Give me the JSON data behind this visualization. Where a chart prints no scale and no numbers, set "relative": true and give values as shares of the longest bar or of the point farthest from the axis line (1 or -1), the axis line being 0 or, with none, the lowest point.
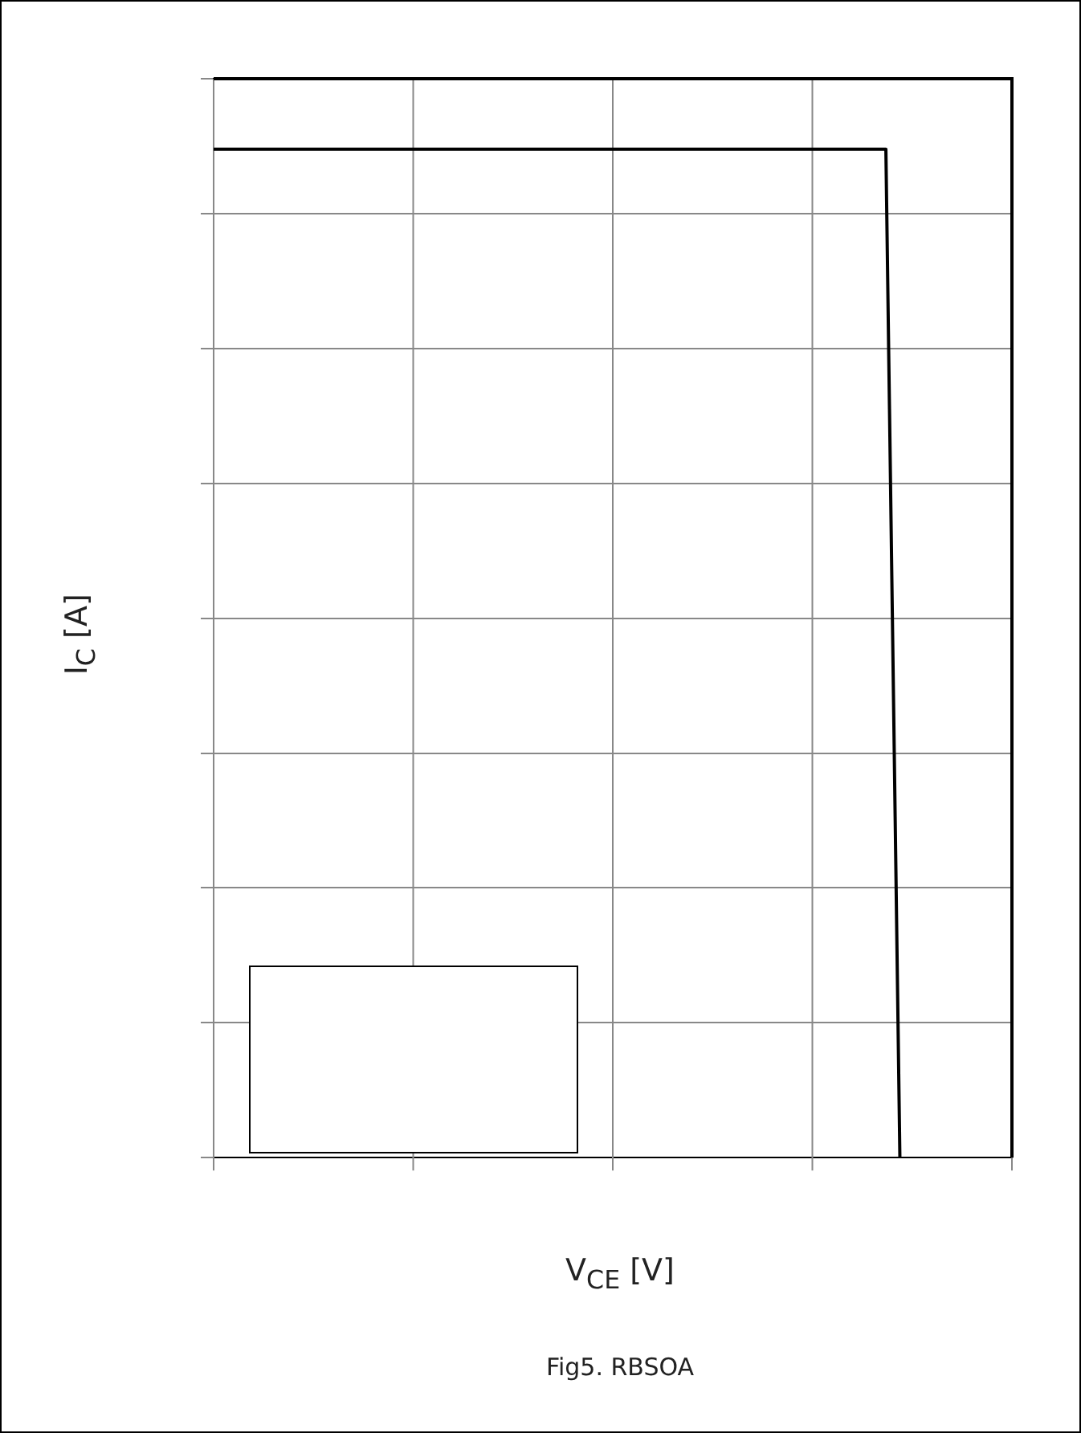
{
  "chart_data": {
    "type": "line",
    "relative": true,
    "xlabel": "V$_{CE}$  [V]",
    "ylabel": "I$_{C}$  [A]",
    "annotations": [
      "Fig5. RBSOA"
    ],
    "categories": [
      null,
      null,
      null,
      null,
      null,
      null,
      null,
      null,
      null,
      null,
      null,
      null,
      null,
      null,
      null,
      null,
      null,
      null,
      null,
      null,
      null,
      null,
      null,
      null,
      null,
      null,
      null,
      null,
      null,
      null,
      null,
      null,
      null,
      null,
      null,
      null,
      null,
      null,
      null,
      null,
      null,
      null,
      null,
      null,
      null,
      null,
      null,
      null,
      null,
      null,
      null,
      null,
      null,
      null,
      null,
      null,
      null,
      null
    ],
    "grid": true,
    "legend": false,
    "marker": "none",
    "line_style": "solid",
    "series": [
      {
        "color": "#000000",
        "values": [
          1,
          1,
          1,
          1,
          1,
          1,
          1,
          1,
          1,
          1,
          1,
          1,
          1,
          1,
          1,
          1,
          1,
          1,
          1,
          1,
          1,
          1,
          1,
          1,
          1,
          1,
          1,
          1,
          1,
          1,
          1,
          1,
          1,
          1,
          1,
          1,
          1,
          1,
          1,
          1,
          1,
          1,
          1,
          1,
          1,
          1,
          1,
          1,
          1,
          0,
          null,
          null,
          null,
          null,
          null,
          null,
          null,
          null
        ]
      }
    ]
  }
}
